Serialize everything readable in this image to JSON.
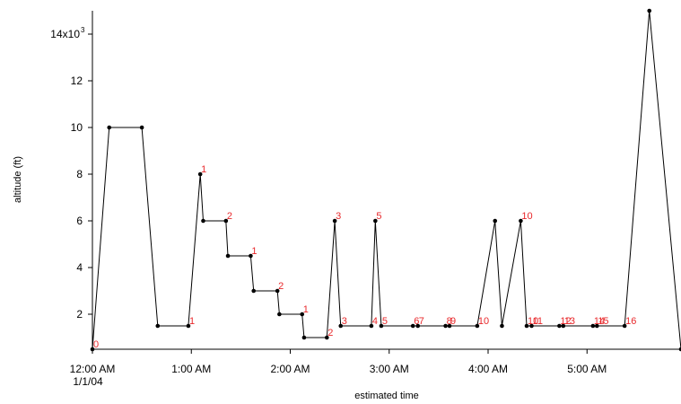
{
  "chart_data": {
    "type": "line",
    "title": "",
    "xlabel": "estimated time",
    "ylabel": "altitude (ft)",
    "x_unit": "hours",
    "xlim": [
      0,
      5.95
    ],
    "ylim": [
      500,
      15000
    ],
    "grid": false,
    "legend": "none",
    "colors": {
      "line": "#000000",
      "annotation": "#e8282b",
      "axis": "#000000"
    },
    "x_ticks": [
      {
        "value": 0,
        "label": "12:00 AM",
        "sublabel": "1/1/04"
      },
      {
        "value": 1,
        "label": "1:00 AM"
      },
      {
        "value": 2,
        "label": "2:00 AM"
      },
      {
        "value": 3,
        "label": "3:00 AM"
      },
      {
        "value": 4,
        "label": "4:00 AM"
      },
      {
        "value": 5,
        "label": "5:00 AM"
      }
    ],
    "y_ticks": [
      {
        "value": 2000,
        "label": "2"
      },
      {
        "value": 4000,
        "label": "4"
      },
      {
        "value": 6000,
        "label": "6"
      },
      {
        "value": 8000,
        "label": "8"
      },
      {
        "value": 10000,
        "label": "10"
      },
      {
        "value": 12000,
        "label": "12"
      },
      {
        "value": 14000,
        "label": "14x10",
        "exponent": "3"
      }
    ],
    "series": [
      {
        "points": [
          [
            0.0,
            500
          ],
          [
            0.17,
            10000
          ],
          [
            0.5,
            10000
          ],
          [
            0.66,
            1500
          ],
          [
            0.97,
            1500
          ],
          [
            1.09,
            8000
          ],
          [
            1.12,
            6000
          ],
          [
            1.35,
            6000
          ],
          [
            1.37,
            4500
          ],
          [
            1.6,
            4500
          ],
          [
            1.63,
            3000
          ],
          [
            1.87,
            3000
          ],
          [
            1.89,
            2000
          ],
          [
            2.12,
            2000
          ],
          [
            2.14,
            1000
          ],
          [
            2.37,
            1000
          ],
          [
            2.45,
            6000
          ],
          [
            2.51,
            1500
          ],
          [
            2.82,
            1500
          ],
          [
            2.86,
            6000
          ],
          [
            2.92,
            1500
          ],
          [
            3.24,
            1500
          ],
          [
            3.29,
            1500
          ],
          [
            3.57,
            1500
          ],
          [
            3.61,
            1500
          ],
          [
            3.89,
            1500
          ],
          [
            4.07,
            6000
          ],
          [
            4.14,
            1500
          ],
          [
            4.33,
            6000
          ],
          [
            4.39,
            1500
          ],
          [
            4.44,
            1500
          ],
          [
            4.72,
            1500
          ],
          [
            4.76,
            1500
          ],
          [
            5.06,
            1500
          ],
          [
            5.1,
            1500
          ],
          [
            5.38,
            1500
          ],
          [
            5.63,
            15000
          ],
          [
            5.95,
            500
          ]
        ]
      }
    ],
    "annotations": [
      {
        "text": "0",
        "x": 0.0,
        "y": 500
      },
      {
        "text": "1",
        "x": 0.97,
        "y": 1500
      },
      {
        "text": "1",
        "x": 1.09,
        "y": 8000
      },
      {
        "text": "2",
        "x": 1.35,
        "y": 6000
      },
      {
        "text": "1",
        "x": 1.6,
        "y": 4500
      },
      {
        "text": "2",
        "x": 1.87,
        "y": 3000
      },
      {
        "text": "1",
        "x": 2.12,
        "y": 2000
      },
      {
        "text": "2",
        "x": 2.37,
        "y": 1000
      },
      {
        "text": "3",
        "x": 2.45,
        "y": 6000
      },
      {
        "text": "3",
        "x": 2.51,
        "y": 1500
      },
      {
        "text": "4",
        "x": 2.82,
        "y": 1500
      },
      {
        "text": "5",
        "x": 2.86,
        "y": 6000
      },
      {
        "text": "5",
        "x": 2.92,
        "y": 1500
      },
      {
        "text": "6",
        "x": 3.24,
        "y": 1500
      },
      {
        "text": "7",
        "x": 3.29,
        "y": 1500
      },
      {
        "text": "8",
        "x": 3.57,
        "y": 1500
      },
      {
        "text": "9",
        "x": 3.61,
        "y": 1500
      },
      {
        "text": "10",
        "x": 3.89,
        "y": 1500
      },
      {
        "text": "10",
        "x": 4.33,
        "y": 6000
      },
      {
        "text": "10",
        "x": 4.39,
        "y": 1500
      },
      {
        "text": "11",
        "x": 4.44,
        "y": 1500
      },
      {
        "text": "12",
        "x": 4.72,
        "y": 1500
      },
      {
        "text": "13",
        "x": 4.76,
        "y": 1500
      },
      {
        "text": "14",
        "x": 5.06,
        "y": 1500
      },
      {
        "text": "15",
        "x": 5.1,
        "y": 1500
      },
      {
        "text": "16",
        "x": 5.38,
        "y": 1500
      }
    ]
  }
}
